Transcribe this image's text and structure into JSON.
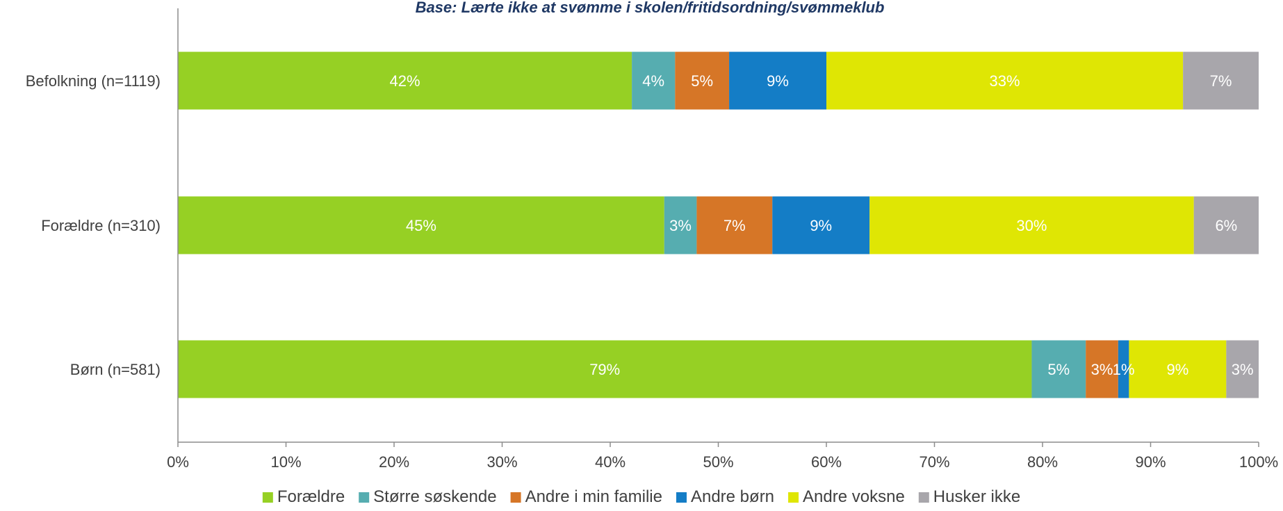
{
  "chart_data": {
    "type": "bar",
    "orientation": "horizontal",
    "stacked": "percent",
    "subtitle": "Base: Lærte ikke at svømme i skolen/fritidsordning/svømmeklub",
    "categories": [
      "Befolkning (n=1119)",
      "Forældre (n=310)",
      "Børn (n=581)"
    ],
    "series": [
      {
        "name": "Forældre",
        "color": "#96d024",
        "values": [
          42,
          45,
          79
        ]
      },
      {
        "name": "Større søskende",
        "color": "#56adb0",
        "values": [
          4,
          3,
          5
        ]
      },
      {
        "name": "Andre i min familie",
        "color": "#d67627",
        "values": [
          5,
          7,
          3
        ]
      },
      {
        "name": "Andre børn",
        "color": "#147dc6",
        "values": [
          9,
          9,
          1
        ]
      },
      {
        "name": "Andre voksne",
        "color": "#dfe604",
        "values": [
          33,
          30,
          9
        ]
      },
      {
        "name": "Husker ikke",
        "color": "#a8a6ab",
        "values": [
          7,
          6,
          3
        ]
      }
    ],
    "data_label_suffix": "%",
    "xlim": [
      0,
      100
    ],
    "x_ticks": [
      "0%",
      "10%",
      "20%",
      "30%",
      "40%",
      "50%",
      "60%",
      "70%",
      "80%",
      "90%",
      "100%"
    ],
    "grid": false,
    "legend_position": "bottom",
    "axis_color": "#8c8c8c"
  }
}
